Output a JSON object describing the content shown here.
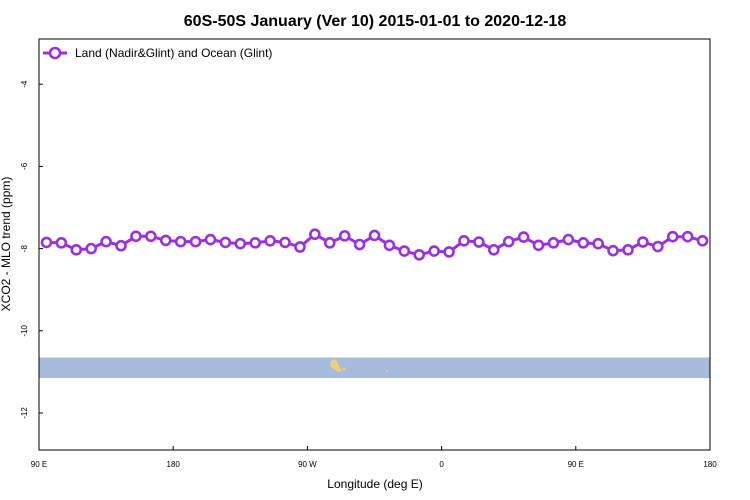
{
  "chart_data": {
    "type": "line",
    "title": "60S-50S January (Ver 10)   2015-01-01 to 2020-12-18",
    "xlabel": "Longitude (deg E)",
    "ylabel": "XCO2 - MLO trend (ppm)",
    "x_ticks": [
      {
        "value": 90,
        "label": "90 E"
      },
      {
        "value": 180,
        "label": "180"
      },
      {
        "value": 270,
        "label": "90 W"
      },
      {
        "value": 360,
        "label": "0"
      },
      {
        "value": 450,
        "label": "90 E"
      },
      {
        "value": 540,
        "label": "180"
      }
    ],
    "y_ticks": [
      {
        "value": -4,
        "label": "-4"
      },
      {
        "value": -6,
        "label": "-6"
      },
      {
        "value": -8,
        "label": "-8"
      },
      {
        "value": -10,
        "label": "-10"
      },
      {
        "value": -12,
        "label": "-12"
      }
    ],
    "xlim": [
      90,
      540
    ],
    "ylim": [
      -12.9,
      -2.9
    ],
    "grid": false,
    "legend_position": "top-left",
    "series": [
      {
        "name": "Land (Nadir&Glint) and Ocean (Glint)",
        "color": "#9b30e0",
        "marker": "open-circle",
        "x": [
          95,
          105,
          115,
          125,
          135,
          145,
          155,
          165,
          175,
          185,
          195,
          205,
          215,
          225,
          235,
          245,
          255,
          265,
          275,
          285,
          295,
          305,
          315,
          325,
          335,
          345,
          355,
          365,
          375,
          385,
          395,
          405,
          415,
          425,
          435,
          445,
          455,
          465,
          475,
          485,
          495,
          505,
          515,
          525,
          535
        ],
        "values": [
          -7.85,
          -7.86,
          -8.03,
          -8.0,
          -7.83,
          -7.93,
          -7.7,
          -7.7,
          -7.8,
          -7.83,
          -7.83,
          -7.78,
          -7.85,
          -7.88,
          -7.86,
          -7.81,
          -7.85,
          -7.96,
          -7.65,
          -7.86,
          -7.69,
          -7.9,
          -7.68,
          -7.92,
          -8.06,
          -8.15,
          -8.06,
          -8.08,
          -7.81,
          -7.84,
          -8.03,
          -7.83,
          -7.72,
          -7.92,
          -7.86,
          -7.78,
          -7.86,
          -7.88,
          -8.05,
          -8.03,
          -7.84,
          -7.95,
          -7.71,
          -7.71,
          -7.81
        ]
      }
    ],
    "map_strip": {
      "y_range": [
        -11.15,
        -10.65
      ],
      "ocean_color": "#a7bcdc",
      "land_color": "#f2d075"
    }
  }
}
